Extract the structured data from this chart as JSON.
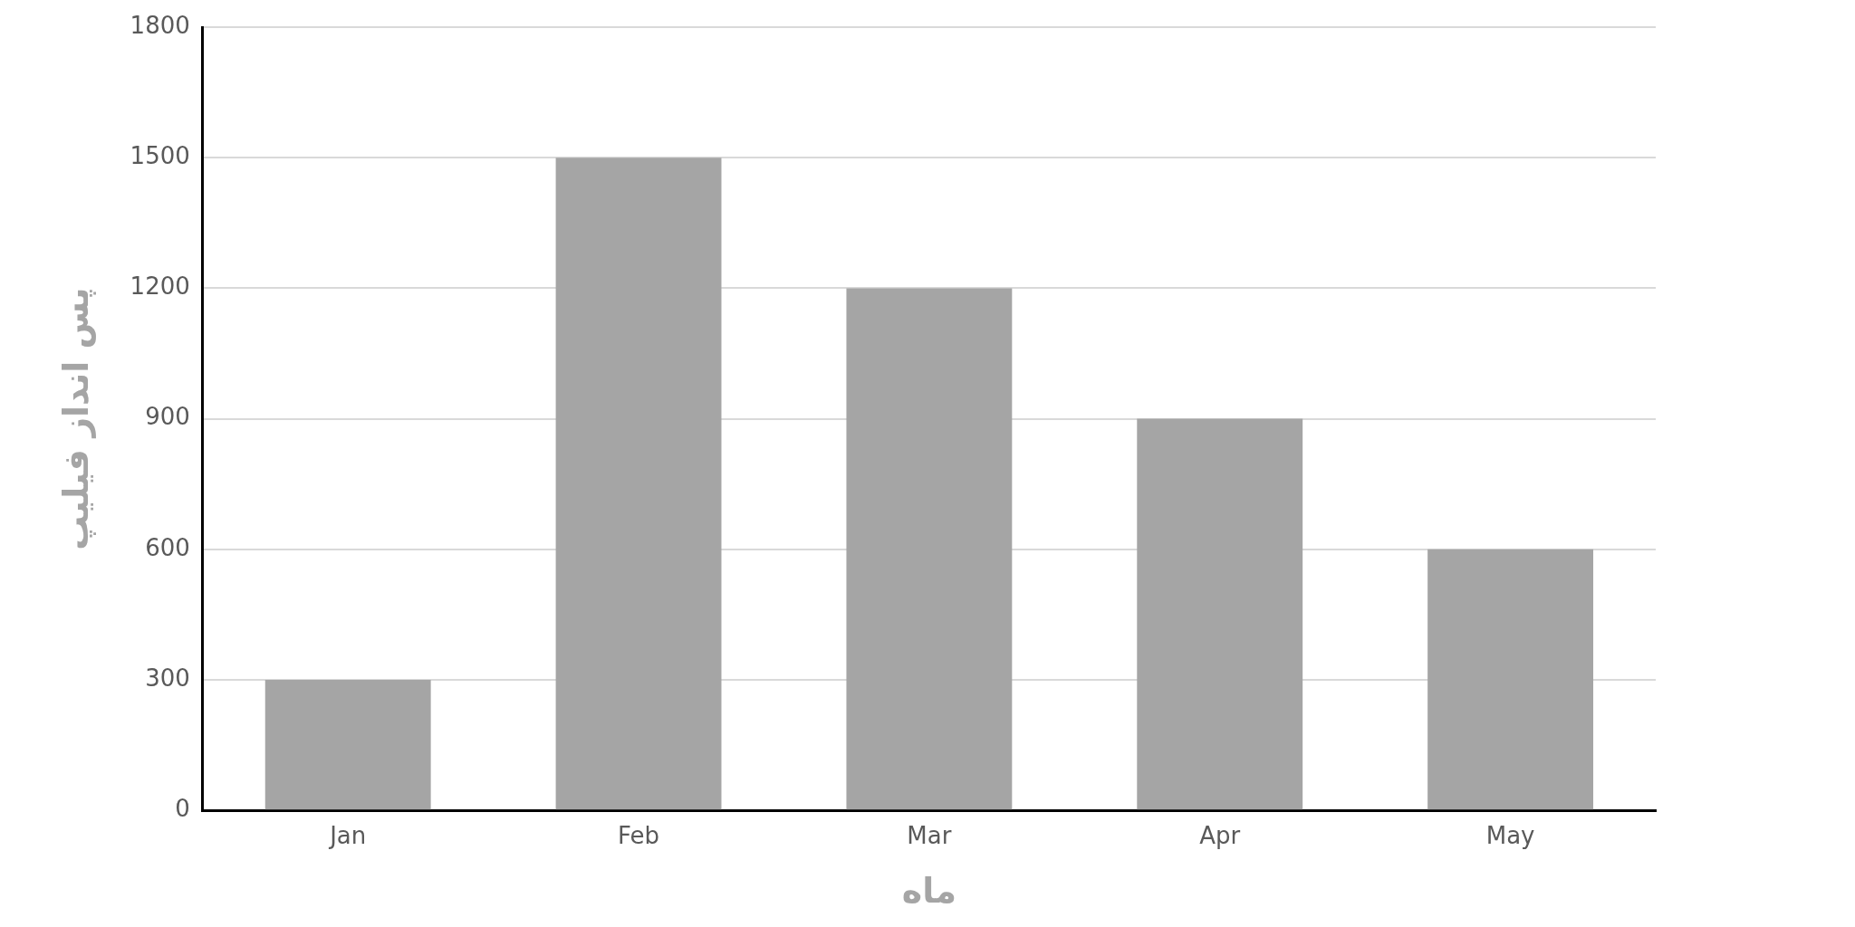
{
  "chart_data": {
    "type": "bar",
    "xlabel": "ماه",
    "ylabel": "پس انداز فیلیپ",
    "categories": [
      "Jan",
      "Feb",
      "Mar",
      "Apr",
      "May"
    ],
    "values": [
      300,
      1500,
      1200,
      900,
      600
    ],
    "color": "#a5a5a5",
    "ylim": [
      0,
      1800
    ],
    "yticks": [
      0,
      300,
      600,
      900,
      1200,
      1500,
      1800
    ],
    "grid": "y",
    "legend": false
  }
}
